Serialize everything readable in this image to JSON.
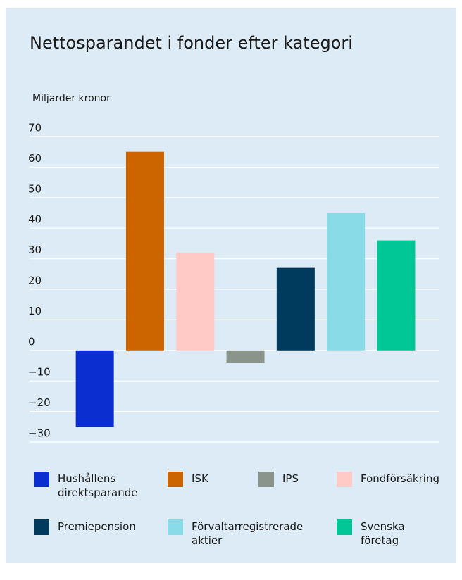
{
  "chart_data": {
    "type": "bar",
    "title": "Nettosparandet i fonder efter kategori",
    "y_label": "Miljarder kronor",
    "categories": [
      null,
      null,
      null,
      null,
      null,
      null,
      null
    ],
    "series": [
      {
        "name": "Hushållens direktsparande",
        "color": "#0a2ecf",
        "values": [
          -25,
          null,
          null,
          null,
          null,
          null,
          null
        ]
      },
      {
        "name": "ISK",
        "color": "#cc6400",
        "values": [
          null,
          65,
          null,
          null,
          null,
          null,
          null
        ]
      },
      {
        "name": "IPS",
        "color": "#8a948a",
        "values": [
          null,
          null,
          null,
          -4,
          null,
          null,
          null
        ]
      },
      {
        "name": "Fondförsäkring",
        "color": "#ffc9c5",
        "values": [
          null,
          null,
          32,
          null,
          null,
          null,
          null
        ]
      },
      {
        "name": "Premiepension",
        "color": "#003a5c",
        "values": [
          null,
          null,
          null,
          null,
          27,
          null,
          null
        ]
      },
      {
        "name": "Förvaltarregistrerade aktier",
        "color": "#8adbe8",
        "values": [
          null,
          null,
          null,
          null,
          null,
          45,
          null
        ]
      },
      {
        "name": "Svenska företag",
        "color": "#00c795",
        "values": [
          null,
          null,
          null,
          null,
          null,
          null,
          36
        ]
      }
    ],
    "ylim": [
      -30,
      70
    ],
    "yticks": [
      {
        "value": -30,
        "label": "−30"
      },
      {
        "value": -20,
        "label": "−20"
      },
      {
        "value": -10,
        "label": "−10"
      },
      0,
      10,
      20,
      30,
      40,
      50,
      60,
      70
    ],
    "grid": true,
    "legend": "bottom"
  }
}
